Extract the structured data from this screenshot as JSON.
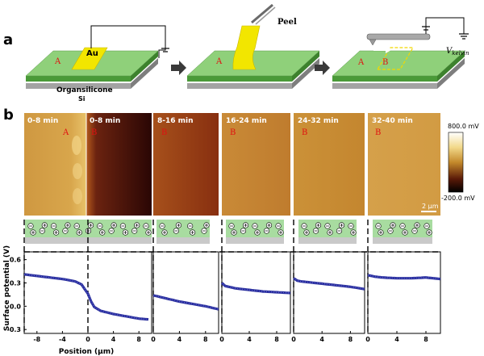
{
  "panel_labels": [
    "a",
    "b"
  ],
  "schematic": {
    "layer_top": "Organsilicone",
    "layer_bottom": "Si",
    "electrode": "Au",
    "region_a": "A",
    "region_b": "B",
    "peel": "Peel",
    "probe_v": "V",
    "probe_v_sub": "kelvin"
  },
  "kpfm": {
    "time_labels": [
      "0-8 min",
      "0-8 min",
      "8-16 min",
      "16-24 min",
      "24-32 min",
      "32-40 min"
    ],
    "region_tags": [
      "A",
      "B",
      "B",
      "B",
      "B",
      "B"
    ],
    "colorbar_max": "800.0 mV",
    "colorbar_min": "-200.0 mV",
    "scalebar": "2 μm"
  },
  "chart_data": {
    "type": "line",
    "ylabel": "Surface potential (V)",
    "xlabel": "Position (μm)",
    "ylim": [
      -0.35,
      0.7
    ],
    "yticks": [
      -0.3,
      0.0,
      0.3,
      0.6
    ],
    "ytick_labels": [
      "-0.3",
      "0.0",
      "0.3",
      "0.6"
    ],
    "panels": [
      {
        "time": "0-8 min",
        "xlim": [
          -10,
          10
        ],
        "xticks": [
          -8,
          -4,
          0,
          4,
          8
        ],
        "xtick_labels": [
          "-8",
          "-4",
          "0",
          "4",
          "8"
        ],
        "x": [
          -10,
          -8,
          -6,
          -4,
          -2,
          -1,
          0,
          0.5,
          1,
          2,
          4,
          6,
          8,
          9.5
        ],
        "y": [
          0.41,
          0.39,
          0.37,
          0.35,
          0.32,
          0.28,
          0.16,
          0.06,
          -0.01,
          -0.06,
          -0.1,
          -0.13,
          -0.16,
          -0.17
        ]
      },
      {
        "time": "8-16 min",
        "xlim": [
          0,
          10
        ],
        "xticks": [
          0,
          4,
          8
        ],
        "xtick_labels": [
          "0",
          "4",
          "8"
        ],
        "x": [
          0,
          2,
          4,
          6,
          8,
          10
        ],
        "y": [
          0.14,
          0.1,
          0.06,
          0.03,
          0.0,
          -0.04
        ]
      },
      {
        "time": "16-24 min",
        "xlim": [
          0,
          10
        ],
        "xticks": [
          0,
          4,
          8
        ],
        "xtick_labels": [
          "0",
          "4",
          "8"
        ],
        "x": [
          0,
          0.5,
          1,
          2,
          4,
          6,
          8,
          10
        ],
        "y": [
          0.3,
          0.26,
          0.25,
          0.23,
          0.21,
          0.19,
          0.18,
          0.17
        ]
      },
      {
        "time": "24-32 min",
        "xlim": [
          0,
          10
        ],
        "xticks": [
          0,
          4,
          8
        ],
        "xtick_labels": [
          "0",
          "4",
          "8"
        ],
        "x": [
          0,
          0.5,
          1,
          2,
          4,
          6,
          8,
          10
        ],
        "y": [
          0.36,
          0.33,
          0.32,
          0.31,
          0.29,
          0.27,
          0.25,
          0.22
        ]
      },
      {
        "time": "32-40 min",
        "xlim": [
          0,
          10
        ],
        "xticks": [
          0,
          4,
          8
        ],
        "xtick_labels": [
          "0",
          "4",
          "8"
        ],
        "x": [
          0,
          1,
          2,
          4,
          6,
          8,
          10
        ],
        "y": [
          0.4,
          0.38,
          0.37,
          0.36,
          0.36,
          0.37,
          0.35
        ]
      }
    ]
  }
}
